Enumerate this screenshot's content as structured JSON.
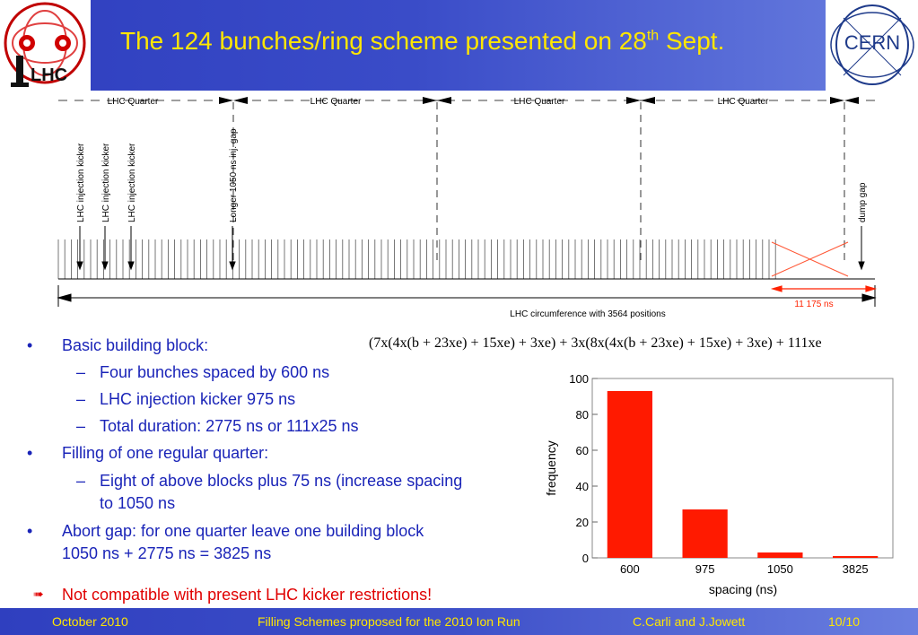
{
  "title": {
    "main": "The 124 bunches/ring scheme presented on 28",
    "sup": "th",
    "end": " Sept."
  },
  "logos": {
    "left": "LHC",
    "right": "CERN"
  },
  "diagram": {
    "quarter_label": "LHC Quarter",
    "kicker_label": "LHC injection kicker",
    "gap_label": "Longer 1050 ns inj. gap",
    "dump_label": "dump gap",
    "circumference_label": "LHC circumference with 3564 positions",
    "dump_length_label": "11 175 ns"
  },
  "formula": "(7x(4x(b + 23xe) + 15xe) + 3xe) + 3x(8x(4x(b + 23xe) + 15xe) + 3xe) + 111xe",
  "bullets": [
    {
      "level": 1,
      "text": "Basic building block:"
    },
    {
      "level": 2,
      "text": "Four bunches spaced by 600 ns"
    },
    {
      "level": 2,
      "text": "LHC injection kicker 975 ns"
    },
    {
      "level": 2,
      "text": "Total duration: 2775 ns or 111x25 ns"
    },
    {
      "level": 1,
      "text": "Filling of one regular quarter:"
    },
    {
      "level": 2,
      "text": "Eight of above blocks plus 75 ns (increase spacing",
      "cont": "to 1050 ns"
    },
    {
      "level": 1,
      "text": "Abort gap: for one quarter leave one building block",
      "cont": "1050 ns + 2775 ns = 3825 ns"
    }
  ],
  "bullet_marks": {
    "level1": "•",
    "level2": "–"
  },
  "warning": {
    "arrow": "➠",
    "text": "Not compatible with present LHC kicker restrictions!"
  },
  "chart_data": {
    "type": "bar",
    "categories": [
      "600",
      "975",
      "1050",
      "3825"
    ],
    "values": [
      93,
      27,
      3,
      1
    ],
    "xlabel": "spacing (ns)",
    "ylabel": "frequency",
    "ylim": [
      0,
      100
    ],
    "yticks": [
      0,
      20,
      40,
      60,
      80,
      100
    ],
    "bar_color": "#ff1a00",
    "grid": false
  },
  "footer": {
    "date": "October 2010",
    "title": "Filling Schemes proposed for the 2010 Ion Run",
    "authors": "C.Carli and J.Jowett",
    "page": "10/10"
  },
  "colors": {
    "title": "#ffe600",
    "bullets": "#1a24b8",
    "warning": "#e00000",
    "marker": "#e00000"
  }
}
